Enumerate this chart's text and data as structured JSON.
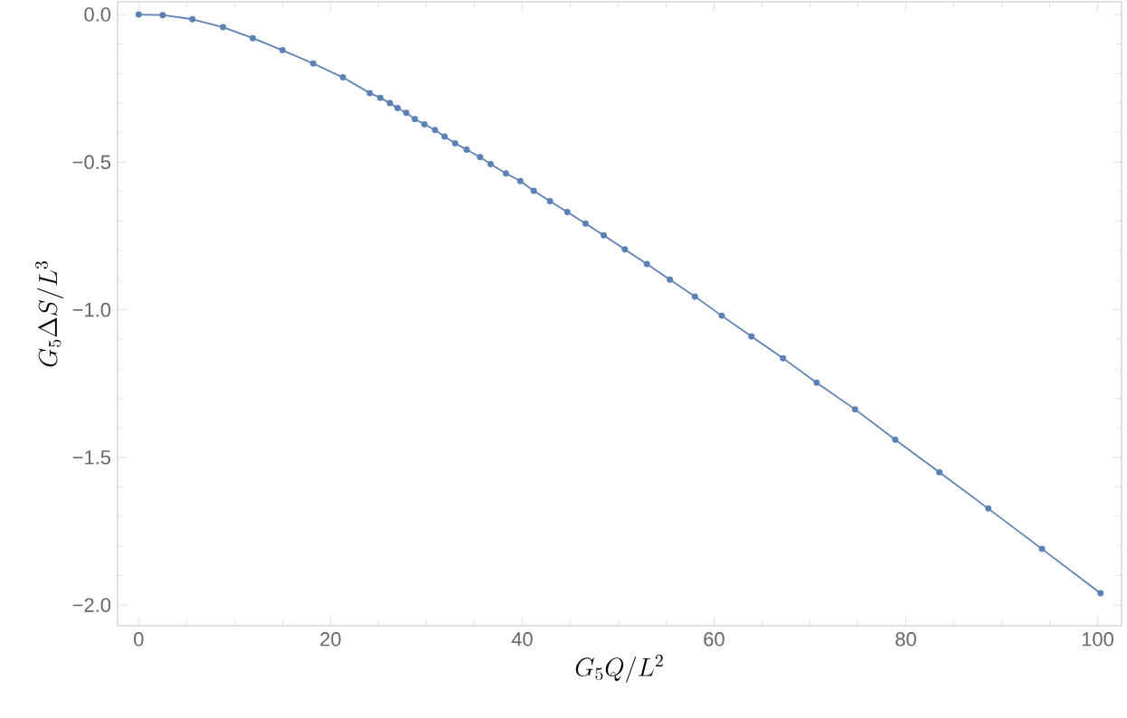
{
  "chart_data": {
    "type": "line",
    "xlabel": "G_5Q/L^2",
    "ylabel": "G_5\\Delta S/L^3",
    "x": [
      0,
      2.5,
      5.6,
      8.8,
      11.9,
      15.0,
      18.2,
      21.3,
      24.1,
      25.2,
      26.2,
      27.0,
      27.9,
      28.8,
      29.8,
      30.9,
      31.9,
      33.0,
      34.2,
      35.6,
      36.7,
      38.3,
      39.8,
      41.2,
      42.9,
      44.7,
      46.6,
      48.5,
      50.7,
      53.0,
      55.4,
      58.0,
      60.8,
      63.9,
      67.2,
      70.7,
      74.7,
      78.9,
      83.5,
      88.6,
      94.2,
      100.3
    ],
    "series": [
      {
        "color": "#5e81b5",
        "values": [
          0,
          -0.002,
          -0.016,
          -0.043,
          -0.08,
          -0.121,
          -0.166,
          -0.213,
          -0.266,
          -0.282,
          -0.3,
          -0.317,
          -0.333,
          -0.354,
          -0.372,
          -0.391,
          -0.413,
          -0.436,
          -0.458,
          -0.483,
          -0.507,
          -0.538,
          -0.564,
          -0.597,
          -0.632,
          -0.669,
          -0.708,
          -0.748,
          -0.795,
          -0.845,
          -0.898,
          -0.955,
          -1.02,
          -1.09,
          -1.164,
          -1.247,
          -1.337,
          -1.44,
          -1.55,
          -1.673,
          -1.81,
          -1.96
        ]
      }
    ],
    "xlim": [
      -2.2,
      102.5
    ],
    "ylim": [
      -2.07,
      0.043
    ],
    "xticks": [
      0,
      20,
      40,
      60,
      80,
      100
    ],
    "yticks": [
      {
        "value": -2.0,
        "label": "−2.0"
      },
      {
        "value": -1.5,
        "label": "−1.5"
      },
      {
        "value": -1.0,
        "label": "−1.0"
      },
      {
        "value": -0.5,
        "label": "−0.5"
      },
      {
        "value": 0,
        "label": "0.0"
      }
    ],
    "marker": "circle",
    "line_style": "solid",
    "grid": false
  }
}
